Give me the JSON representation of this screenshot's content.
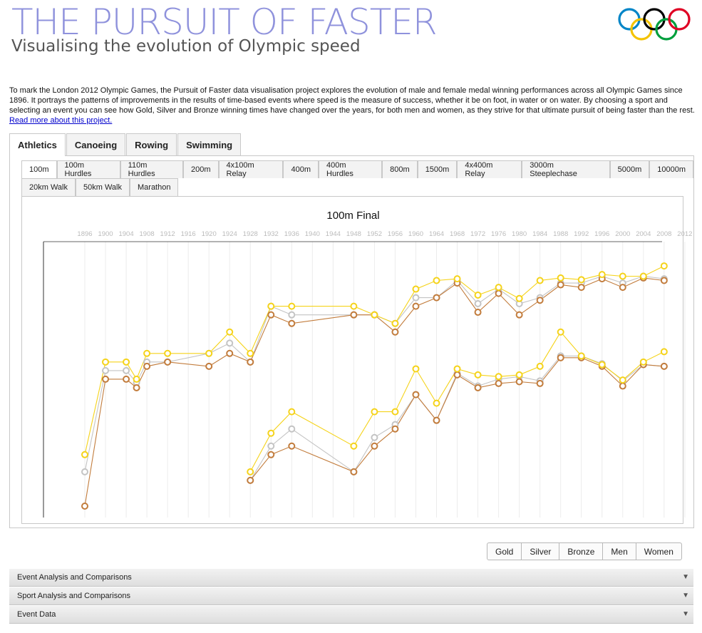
{
  "header": {
    "title": "THE PURSUIT OF FASTER",
    "subtitle": "Visualising the evolution of Olympic speed",
    "rings_colors": [
      "#0085c7",
      "#f4c300",
      "#000000",
      "#009f3d",
      "#df0024"
    ]
  },
  "intro": {
    "text": "To mark the London 2012 Olympic Games, the Pursuit of Faster data visualisation project explores the evolution of male and female medal winning performances across all Olympic Games since 1896. It portrays the patterns of improvements in the results of time-based events where speed is the measure of success, whether it be on foot, in water or on water. By choosing a sport and selecting an event you can see how Gold, Silver and Bronze winning times have changed over the years, for both men and women, as they strive for that ultimate pursuit of being faster than the rest. ",
    "link": "Read more about this project."
  },
  "sport_tabs": [
    "Athletics",
    "Canoeing",
    "Rowing",
    "Swimming"
  ],
  "active_sport": "Athletics",
  "event_tabs_row1": [
    "100m",
    "100m Hurdles",
    "110m Hurdles",
    "200m",
    "4x100m Relay",
    "400m",
    "400m Hurdles",
    "800m",
    "1500m",
    "4x400m Relay",
    "3000m Steeplechase",
    "5000m",
    "10000m"
  ],
  "event_tabs_row2": [
    "20km Walk",
    "50km Walk",
    "Marathon"
  ],
  "active_event": "100m",
  "legend": [
    "Gold",
    "Silver",
    "Bronze",
    "Men",
    "Women"
  ],
  "accordions": [
    {
      "label": "Event Analysis and Comparisons",
      "arrow": "▼"
    },
    {
      "label": "Sport Analysis and Comparisons",
      "arrow": "▼"
    },
    {
      "label": "Event Data",
      "arrow": "▼"
    }
  ],
  "colors": {
    "gold": "#f5d31a",
    "silver": "#c4c4c4",
    "bronze": "#c27c3c",
    "title": "#8f92dc"
  },
  "chart_data": {
    "type": "line",
    "title": "100m Final",
    "x_ticks": [
      "1896",
      "1900",
      "1904",
      "1908",
      "1912",
      "1916",
      "1920",
      "1924",
      "1928",
      "1932",
      "1936",
      "1940",
      "1944",
      "1948",
      "1952",
      "1956",
      "1960",
      "1964",
      "1968",
      "1972",
      "1976",
      "1980",
      "1984",
      "1988",
      "1992",
      "1996",
      "2000",
      "2004",
      "2008",
      "2012"
    ],
    "xlim": [
      1896,
      2012
    ],
    "y_axis_labels": "none",
    "grid": "vertical",
    "note_values": "speed relative scale, higher is faster (read from marker positions)",
    "ylim": [
      0,
      30
    ],
    "series": [
      {
        "name": "Gold",
        "group": "men",
        "x": [
          1896,
          1900,
          1904,
          1906,
          1908,
          1912,
          1920,
          1924,
          1928,
          1932,
          1936,
          1948,
          1952,
          1956,
          1960,
          1964,
          1968,
          1972,
          1976,
          1980,
          1984,
          1988,
          1992,
          1996,
          2000,
          2004,
          2008
        ],
        "y": [
          6.0,
          16.8,
          16.8,
          14.8,
          17.8,
          17.8,
          17.8,
          20.3,
          17.8,
          23.3,
          23.3,
          23.3,
          22.3,
          21.3,
          25.3,
          26.3,
          26.5,
          24.6,
          25.5,
          24.2,
          26.3,
          26.6,
          26.4,
          27.0,
          26.8,
          26.8,
          28.0
        ]
      },
      {
        "name": "Silver",
        "group": "men",
        "x": [
          1896,
          1900,
          1904,
          1906,
          1908,
          1912,
          1920,
          1924,
          1928,
          1932,
          1936,
          1948,
          1952,
          1956,
          1960,
          1964,
          1968,
          1972,
          1976,
          1980,
          1984,
          1988,
          1992,
          1996,
          2000,
          2004,
          2008
        ],
        "y": [
          4.0,
          15.8,
          15.8,
          14.4,
          16.8,
          16.8,
          17.8,
          19.0,
          16.8,
          23.3,
          22.3,
          22.3,
          22.3,
          21.3,
          24.3,
          24.3,
          26.3,
          23.6,
          25.3,
          23.6,
          24.3,
          26.0,
          26.0,
          26.8,
          26.0,
          26.8,
          26.5
        ]
      },
      {
        "name": "Bronze",
        "group": "men",
        "x": [
          1896,
          1900,
          1904,
          1906,
          1908,
          1912,
          1920,
          1924,
          1928,
          1932,
          1936,
          1948,
          1952,
          1956,
          1960,
          1964,
          1968,
          1972,
          1976,
          1980,
          1984,
          1988,
          1992,
          1996,
          2000,
          2004,
          2008
        ],
        "y": [
          0.0,
          14.8,
          14.8,
          13.8,
          16.3,
          16.8,
          16.3,
          17.8,
          16.8,
          22.3,
          21.3,
          22.3,
          22.3,
          20.3,
          23.3,
          24.3,
          26.0,
          22.6,
          24.8,
          22.3,
          24.0,
          25.8,
          25.5,
          26.5,
          25.5,
          26.6,
          26.3
        ]
      },
      {
        "name": "Gold",
        "group": "women",
        "x": [
          1928,
          1932,
          1936,
          1948,
          1952,
          1956,
          1960,
          1964,
          1968,
          1972,
          1976,
          1980,
          1984,
          1988,
          1992,
          1996,
          2000,
          2004,
          2008
        ],
        "y": [
          4.0,
          8.5,
          11.0,
          7.0,
          11.0,
          11.0,
          16.0,
          12.0,
          16.0,
          15.3,
          15.1,
          15.3,
          16.3,
          20.3,
          17.5,
          16.5,
          14.7,
          16.8,
          18.0
        ]
      },
      {
        "name": "Silver",
        "group": "women",
        "x": [
          1928,
          1932,
          1936,
          1948,
          1952,
          1956,
          1960,
          1964,
          1968,
          1972,
          1976,
          1980,
          1984,
          1988,
          1992,
          1996,
          2000,
          2004,
          2008
        ],
        "y": [
          3.0,
          7.0,
          9.0,
          4.0,
          8.0,
          9.5,
          13.0,
          10.0,
          15.5,
          14.0,
          14.8,
          15.1,
          14.6,
          17.5,
          17.5,
          16.6,
          14.6,
          16.5,
          16.3
        ]
      },
      {
        "name": "Bronze",
        "group": "women",
        "x": [
          1928,
          1932,
          1936,
          1948,
          1952,
          1956,
          1960,
          1964,
          1968,
          1972,
          1976,
          1980,
          1984,
          1988,
          1992,
          1996,
          2000,
          2004,
          2008
        ],
        "y": [
          3.0,
          6.0,
          7.0,
          4.0,
          7.0,
          9.0,
          13.0,
          10.0,
          15.3,
          13.8,
          14.3,
          14.5,
          14.3,
          17.3,
          17.3,
          16.3,
          14.0,
          16.5,
          16.3
        ]
      }
    ]
  }
}
